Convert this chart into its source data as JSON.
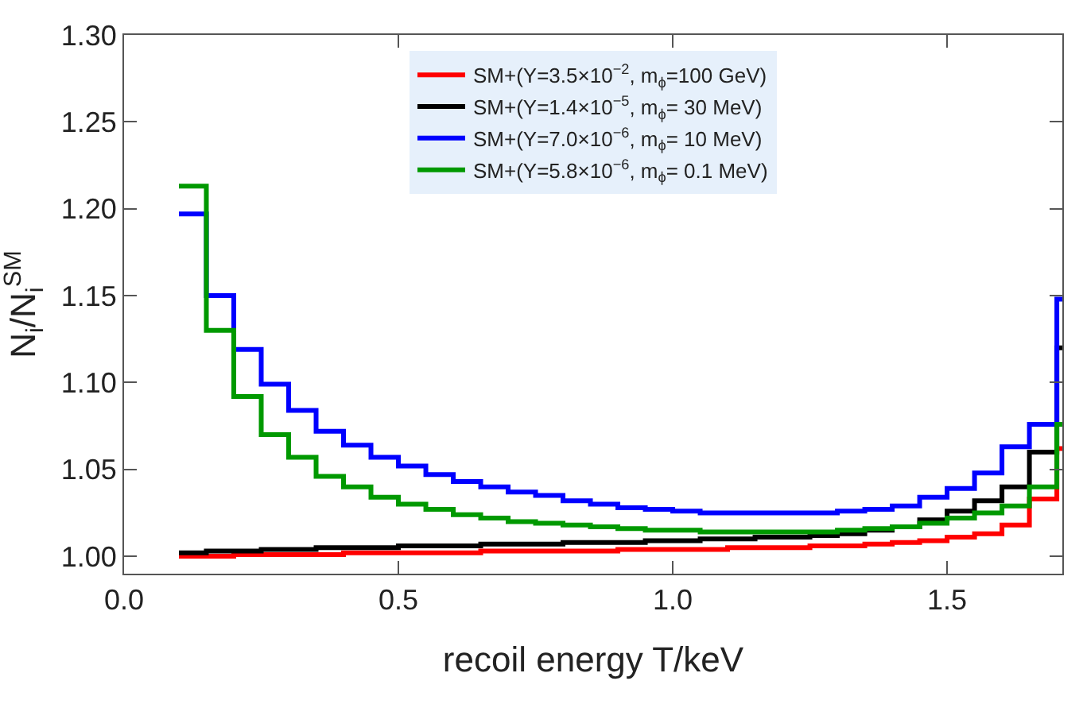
{
  "chart_data": {
    "type": "histogram",
    "xlabel": "recoil energy T/keV",
    "ylabel": "N$_{i}$/N$_{i}$$^{SM}$",
    "bins": [
      0.1,
      0.15,
      0.2,
      0.25,
      0.3,
      0.35,
      0.4,
      0.45,
      0.5,
      0.55,
      0.6,
      0.65,
      0.7,
      0.75,
      0.8,
      0.85,
      0.9,
      0.95,
      1.0,
      1.05,
      1.1,
      1.15,
      1.2,
      1.25,
      1.3,
      1.35,
      1.4,
      1.45,
      1.5,
      1.55,
      1.6,
      1.65,
      1.7,
      1.71
    ],
    "series": [
      {
        "name": "SM+(Y=3.5×10$^{−2}$, m$_{ϕ}$=100 GeV)",
        "color": "#ff0000",
        "values": [
          1.0,
          1.0,
          1.001,
          1.001,
          1.001,
          1.001,
          1.002,
          1.002,
          1.002,
          1.002,
          1.002,
          1.003,
          1.003,
          1.003,
          1.003,
          1.003,
          1.004,
          1.004,
          1.004,
          1.004,
          1.005,
          1.005,
          1.005,
          1.006,
          1.006,
          1.007,
          1.008,
          1.009,
          1.011,
          1.013,
          1.018,
          1.033,
          1.062
        ]
      },
      {
        "name": "SM+(Y=1.4×10$^{−5}$, m$_{ϕ}$= 30 MeV)",
        "color": "#000000",
        "values": [
          1.002,
          1.003,
          1.003,
          1.004,
          1.004,
          1.005,
          1.005,
          1.005,
          1.006,
          1.006,
          1.006,
          1.007,
          1.007,
          1.007,
          1.008,
          1.008,
          1.008,
          1.009,
          1.009,
          1.01,
          1.01,
          1.011,
          1.011,
          1.012,
          1.013,
          1.015,
          1.017,
          1.021,
          1.026,
          1.032,
          1.04,
          1.06,
          1.12
        ]
      },
      {
        "name": "SM+(Y=7.0×10$^{−6}$, m$_{ϕ}$= 10 MeV)",
        "color": "#0000ff",
        "values": [
          1.197,
          1.15,
          1.119,
          1.099,
          1.084,
          1.072,
          1.064,
          1.057,
          1.052,
          1.047,
          1.043,
          1.04,
          1.037,
          1.035,
          1.032,
          1.03,
          1.028,
          1.027,
          1.026,
          1.025,
          1.025,
          1.025,
          1.025,
          1.025,
          1.026,
          1.027,
          1.029,
          1.034,
          1.039,
          1.048,
          1.063,
          1.076,
          1.148
        ]
      },
      {
        "name": "SM+(Y=5.8×10$^{−6}$, m$_{ϕ}$= 0.1 MeV)",
        "color": "#009900",
        "values": [
          1.213,
          1.13,
          1.092,
          1.07,
          1.057,
          1.046,
          1.04,
          1.034,
          1.03,
          1.027,
          1.024,
          1.022,
          1.02,
          1.019,
          1.018,
          1.017,
          1.016,
          1.015,
          1.015,
          1.014,
          1.014,
          1.014,
          1.014,
          1.014,
          1.015,
          1.016,
          1.017,
          1.019,
          1.022,
          1.025,
          1.029,
          1.04,
          1.076
        ]
      }
    ],
    "xlim": [
      0,
      1.71
    ],
    "xticks": [
      {
        "value": 0,
        "label": "0.0"
      },
      {
        "value": 0.5,
        "label": "0.5"
      },
      {
        "value": 1,
        "label": "1.0"
      },
      {
        "value": 1.5,
        "label": "1.5"
      }
    ],
    "ylim": [
      0.99,
      1.3
    ],
    "yticks": [
      {
        "value": 1,
        "label": "1.00"
      },
      {
        "value": 1.05,
        "label": "1.05"
      },
      {
        "value": 1.1,
        "label": "1.10"
      },
      {
        "value": 1.15,
        "label": "1.15"
      },
      {
        "value": 1.2,
        "label": "1.20"
      },
      {
        "value": 1.25,
        "label": "1.25"
      },
      {
        "value": 1.3,
        "label": "1.30"
      }
    ],
    "grid": false,
    "legend": "top"
  }
}
